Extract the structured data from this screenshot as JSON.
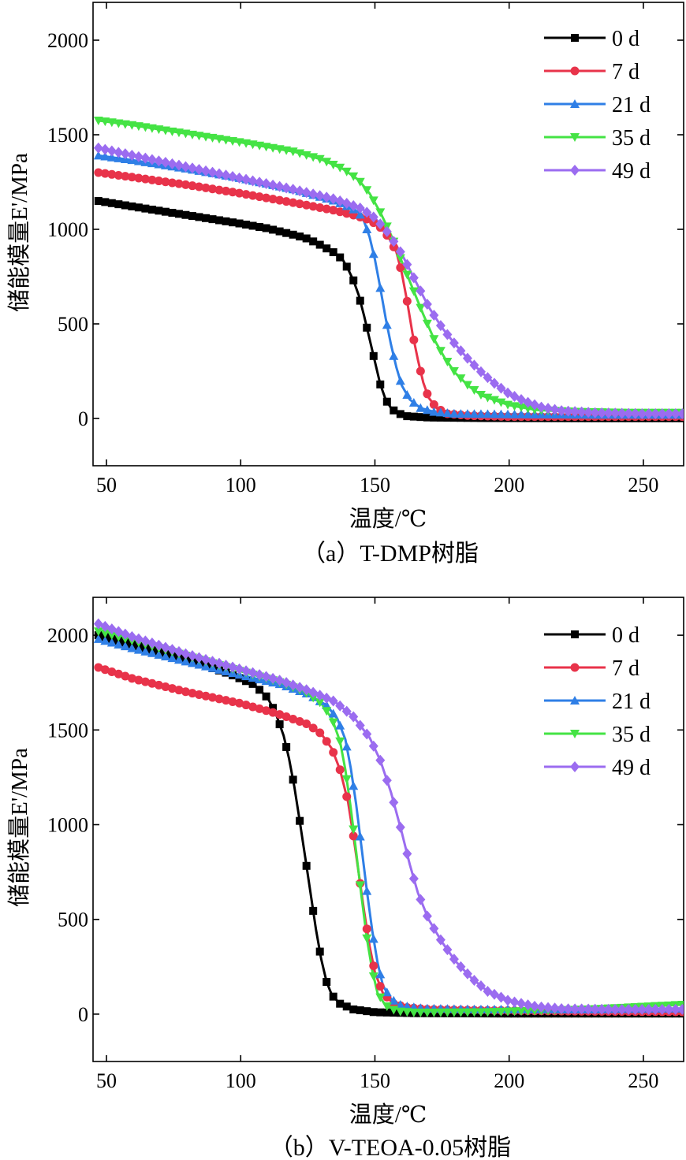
{
  "chart_data": [
    {
      "type": "line",
      "caption": "（a）T-DMP树脂",
      "xlabel": "温度/℃",
      "ylabel": "储能模量E'/MPa",
      "xlim": [
        45,
        265
      ],
      "ylim": [
        -250,
        2200
      ],
      "xticks": [
        "50",
        "100",
        "150",
        "200",
        "250"
      ],
      "yticks": [
        "0",
        "500",
        "1000",
        "1500",
        "2000"
      ],
      "legend_position": "top-right",
      "series": [
        {
          "name": "0 d",
          "color": "#000000",
          "marker": "square",
          "points": [
            [
              47,
              1150
            ],
            [
              60,
              1120
            ],
            [
              80,
              1075
            ],
            [
              100,
              1030
            ],
            [
              110,
              1005
            ],
            [
              120,
              970
            ],
            [
              125,
              950
            ],
            [
              130,
              915
            ],
            [
              135,
              875
            ],
            [
              138,
              840
            ],
            [
              140,
              790
            ],
            [
              142,
              730
            ],
            [
              144,
              650
            ],
            [
              146,
              540
            ],
            [
              148,
              420
            ],
            [
              150,
              300
            ],
            [
              152,
              180
            ],
            [
              154,
              100
            ],
            [
              156,
              55
            ],
            [
              158,
              30
            ],
            [
              162,
              12
            ],
            [
              170,
              5
            ],
            [
              190,
              2
            ],
            [
              230,
              1
            ],
            [
              265,
              1
            ]
          ]
        },
        {
          "name": "7 d",
          "color": "#e8334a",
          "marker": "circle",
          "points": [
            [
              47,
              1300
            ],
            [
              60,
              1275
            ],
            [
              80,
              1235
            ],
            [
              100,
              1190
            ],
            [
              120,
              1140
            ],
            [
              135,
              1100
            ],
            [
              142,
              1075
            ],
            [
              148,
              1050
            ],
            [
              152,
              1010
            ],
            [
              155,
              960
            ],
            [
              158,
              880
            ],
            [
              160,
              770
            ],
            [
              162,
              620
            ],
            [
              164,
              450
            ],
            [
              166,
              310
            ],
            [
              168,
              190
            ],
            [
              170,
              110
            ],
            [
              173,
              55
            ],
            [
              177,
              25
            ],
            [
              185,
              15
            ],
            [
              200,
              10
            ],
            [
              230,
              10
            ],
            [
              265,
              10
            ]
          ]
        },
        {
          "name": "21 d",
          "color": "#2f7fe6",
          "marker": "triangle-up",
          "points": [
            [
              47,
              1390
            ],
            [
              60,
              1365
            ],
            [
              80,
              1320
            ],
            [
              100,
              1270
            ],
            [
              120,
              1210
            ],
            [
              135,
              1150
            ],
            [
              140,
              1120
            ],
            [
              144,
              1090
            ],
            [
              146,
              1040
            ],
            [
              148,
              960
            ],
            [
              150,
              840
            ],
            [
              152,
              690
            ],
            [
              154,
              530
            ],
            [
              156,
              390
            ],
            [
              158,
              270
            ],
            [
              160,
              175
            ],
            [
              163,
              100
            ],
            [
              167,
              55
            ],
            [
              172,
              35
            ],
            [
              180,
              25
            ],
            [
              200,
              22
            ],
            [
              230,
              20
            ],
            [
              265,
              20
            ]
          ]
        },
        {
          "name": "35 d",
          "color": "#44e344",
          "marker": "triangle-down",
          "points": [
            [
              47,
              1575
            ],
            [
              60,
              1550
            ],
            [
              80,
              1505
            ],
            [
              100,
              1460
            ],
            [
              120,
              1410
            ],
            [
              130,
              1370
            ],
            [
              138,
              1320
            ],
            [
              144,
              1260
            ],
            [
              148,
              1190
            ],
            [
              152,
              1090
            ],
            [
              156,
              970
            ],
            [
              160,
              830
            ],
            [
              164,
              690
            ],
            [
              168,
              550
            ],
            [
              172,
              420
            ],
            [
              176,
              320
            ],
            [
              180,
              240
            ],
            [
              185,
              170
            ],
            [
              190,
              120
            ],
            [
              200,
              70
            ],
            [
              210,
              45
            ],
            [
              225,
              35
            ],
            [
              245,
              30
            ],
            [
              265,
              30
            ]
          ]
        },
        {
          "name": "49 d",
          "color": "#9b6cf0",
          "marker": "diamond",
          "points": [
            [
              47,
              1430
            ],
            [
              60,
              1390
            ],
            [
              80,
              1330
            ],
            [
              100,
              1270
            ],
            [
              120,
              1210
            ],
            [
              135,
              1160
            ],
            [
              145,
              1110
            ],
            [
              150,
              1060
            ],
            [
              155,
              980
            ],
            [
              160,
              870
            ],
            [
              165,
              730
            ],
            [
              170,
              590
            ],
            [
              175,
              480
            ],
            [
              180,
              390
            ],
            [
              185,
              310
            ],
            [
              190,
              240
            ],
            [
              195,
              180
            ],
            [
              200,
              130
            ],
            [
              206,
              90
            ],
            [
              212,
              60
            ],
            [
              220,
              40
            ],
            [
              232,
              30
            ],
            [
              250,
              25
            ],
            [
              265,
              25
            ]
          ]
        }
      ]
    },
    {
      "type": "line",
      "caption": "（b）V-TEOA-0.05树脂",
      "xlabel": "温度/℃",
      "ylabel": "储能模量E'/MPa",
      "xlim": [
        45,
        265
      ],
      "ylim": [
        -250,
        2200
      ],
      "xticks": [
        "50",
        "100",
        "150",
        "200",
        "250"
      ],
      "yticks": [
        "0",
        "500",
        "1000",
        "1500",
        "2000"
      ],
      "legend_position": "top-right",
      "series": [
        {
          "name": "0 d",
          "color": "#000000",
          "marker": "square",
          "points": [
            [
              47,
              2000
            ],
            [
              60,
              1950
            ],
            [
              80,
              1870
            ],
            [
              95,
              1800
            ],
            [
              105,
              1740
            ],
            [
              110,
              1670
            ],
            [
              113,
              1590
            ],
            [
              116,
              1470
            ],
            [
              118,
              1350
            ],
            [
              120,
              1200
            ],
            [
              122,
              1020
            ],
            [
              124,
              830
            ],
            [
              126,
              640
            ],
            [
              128,
              450
            ],
            [
              130,
              290
            ],
            [
              132,
              170
            ],
            [
              134,
              100
            ],
            [
              137,
              55
            ],
            [
              142,
              25
            ],
            [
              150,
              10
            ],
            [
              165,
              5
            ],
            [
              200,
              3
            ],
            [
              265,
              3
            ]
          ]
        },
        {
          "name": "7 d",
          "color": "#e8334a",
          "marker": "circle",
          "points": [
            [
              47,
              1830
            ],
            [
              60,
              1770
            ],
            [
              80,
              1700
            ],
            [
              100,
              1640
            ],
            [
              115,
              1580
            ],
            [
              125,
              1530
            ],
            [
              130,
              1480
            ],
            [
              134,
              1400
            ],
            [
              137,
              1290
            ],
            [
              140,
              1120
            ],
            [
              142,
              940
            ],
            [
              144,
              740
            ],
            [
              146,
              540
            ],
            [
              148,
              360
            ],
            [
              150,
              220
            ],
            [
              153,
              110
            ],
            [
              157,
              55
            ],
            [
              162,
              35
            ],
            [
              170,
              25
            ],
            [
              190,
              20
            ],
            [
              230,
              15
            ],
            [
              265,
              12
            ]
          ]
        },
        {
          "name": "21 d",
          "color": "#2f7fe6",
          "marker": "triangle-up",
          "points": [
            [
              47,
              1980
            ],
            [
              60,
              1930
            ],
            [
              80,
              1860
            ],
            [
              100,
              1790
            ],
            [
              115,
              1740
            ],
            [
              125,
              1690
            ],
            [
              132,
              1630
            ],
            [
              136,
              1560
            ],
            [
              139,
              1450
            ],
            [
              141,
              1300
            ],
            [
              143,
              1110
            ],
            [
              145,
              880
            ],
            [
              147,
              650
            ],
            [
              149,
              440
            ],
            [
              151,
              270
            ],
            [
              153,
              150
            ],
            [
              156,
              80
            ],
            [
              160,
              45
            ],
            [
              168,
              30
            ],
            [
              190,
              25
            ],
            [
              230,
              25
            ],
            [
              265,
              30
            ]
          ]
        },
        {
          "name": "35 d",
          "color": "#44e344",
          "marker": "triangle-down",
          "points": [
            [
              47,
              2020
            ],
            [
              60,
              1970
            ],
            [
              80,
              1890
            ],
            [
              100,
              1810
            ],
            [
              115,
              1750
            ],
            [
              124,
              1700
            ],
            [
              130,
              1640
            ],
            [
              134,
              1560
            ],
            [
              137,
              1440
            ],
            [
              139,
              1290
            ],
            [
              141,
              1090
            ],
            [
              143,
              860
            ],
            [
              145,
              620
            ],
            [
              147,
              400
            ],
            [
              149,
              230
            ],
            [
              151,
              110
            ],
            [
              154,
              45
            ],
            [
              158,
              15
            ],
            [
              165,
              8
            ],
            [
              190,
              10
            ],
            [
              230,
              25
            ],
            [
              265,
              50
            ]
          ]
        },
        {
          "name": "49 d",
          "color": "#9b6cf0",
          "marker": "diamond",
          "points": [
            [
              47,
              2060
            ],
            [
              60,
              1990
            ],
            [
              80,
              1900
            ],
            [
              100,
              1820
            ],
            [
              115,
              1760
            ],
            [
              125,
              1710
            ],
            [
              135,
              1650
            ],
            [
              142,
              1570
            ],
            [
              148,
              1460
            ],
            [
              152,
              1340
            ],
            [
              156,
              1170
            ],
            [
              160,
              960
            ],
            [
              163,
              790
            ],
            [
              166,
              640
            ],
            [
              170,
              500
            ],
            [
              175,
              380
            ],
            [
              180,
              280
            ],
            [
              186,
              190
            ],
            [
              192,
              120
            ],
            [
              200,
              70
            ],
            [
              210,
              40
            ],
            [
              220,
              28
            ],
            [
              240,
              25
            ],
            [
              265,
              25
            ]
          ]
        }
      ]
    }
  ]
}
